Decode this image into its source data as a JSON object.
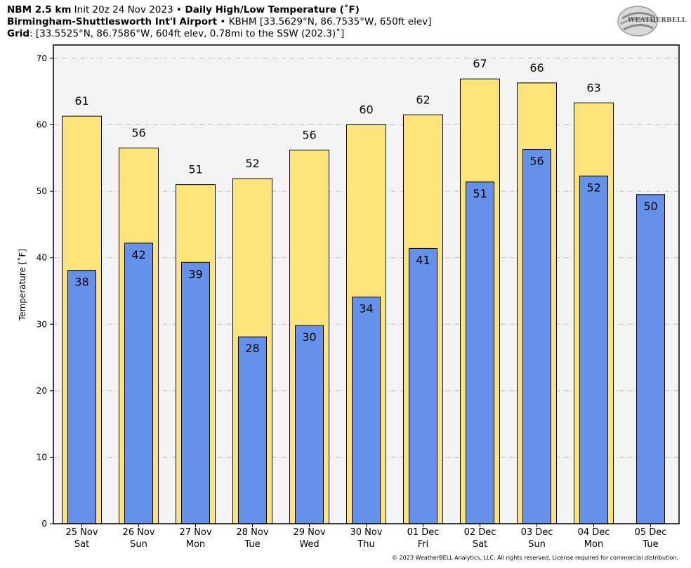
{
  "header": {
    "line1_model": "NBM 2.5 km",
    "line1_init": " Init 20z 24 Nov 2023 ",
    "line1_sep": "•",
    "line1_title": " Daily High/Low Temperature (˚F)",
    "line2_station": "Birmingham-Shuttlesworth Int'l Airport",
    "line2_sep": " • ",
    "line2_detail": "KBHM [33.5629°N, 86.7535°W, 650ft elev]",
    "line3_label": "Grid",
    "line3_detail": ": [33.5525°N, 86.7586°W, 604ft elev, 0.78mi to the SSW (202.3)˚]"
  },
  "logo": {
    "text": "WEATHERBELL",
    "icon": "weatherbell-logo"
  },
  "footer": "© 2023 WeatherBELL Analytics, LLC. All rights reserved. License required for commercial distribution.",
  "colors": {
    "high": "#ffe47a",
    "low": "#6492ea",
    "plot_bg": "#f4f4f4",
    "grid": "#bbbbbb"
  },
  "chart_data": {
    "type": "bar",
    "ylabel": "Temperature [˚F]",
    "ylim": [
      0,
      72
    ],
    "yticks": [
      0,
      10,
      20,
      30,
      40,
      50,
      60,
      70
    ],
    "grid": true,
    "categories": [
      "25 Nov",
      "26 Nov",
      "27 Nov",
      "28 Nov",
      "29 Nov",
      "30 Nov",
      "01 Dec",
      "02 Dec",
      "03 Dec",
      "04 Dec",
      "05 Dec"
    ],
    "days": [
      "Sat",
      "Sun",
      "Mon",
      "Tue",
      "Wed",
      "Thu",
      "Fri",
      "Sat",
      "Sun",
      "Mon",
      "Tue"
    ],
    "series": [
      {
        "name": "High",
        "values": [
          61.3,
          56.5,
          51.0,
          51.9,
          56.2,
          60.0,
          61.5,
          66.9,
          66.3,
          63.3,
          null
        ],
        "labels": [
          "61",
          "56",
          "51",
          "52",
          "56",
          "60",
          "62",
          "67",
          "66",
          "63",
          ""
        ]
      },
      {
        "name": "Low",
        "values": [
          38.1,
          42.2,
          39.3,
          28.1,
          29.8,
          34.1,
          41.4,
          51.4,
          56.3,
          52.3,
          49.5
        ],
        "labels": [
          "38",
          "42",
          "39",
          "28",
          "30",
          "34",
          "41",
          "51",
          "56",
          "52",
          "50"
        ]
      }
    ]
  }
}
